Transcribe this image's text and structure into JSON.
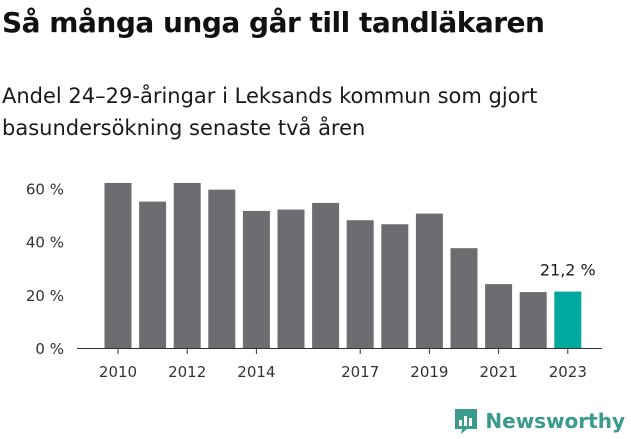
{
  "title": "Så många unga går till tandläkaren",
  "subtitle": "Andel 24–29-åringar i Leksands kommun som gjort basundersökning senaste två åren",
  "brand": "Newsworthy",
  "colors": {
    "bar": "#6d6c71",
    "highlight": "#00a99d",
    "axis": "#333333",
    "gridline": "#cccccc",
    "brand": "#3a9a8c"
  },
  "chart_data": {
    "type": "bar",
    "title": "Så många unga går till tandläkaren",
    "subtitle": "Andel 24–29-åringar i Leksands kommun som gjort basundersökning senaste två åren",
    "categories": [
      "2010",
      "2011",
      "2012",
      "2013",
      "2014",
      "2015",
      "2016",
      "2017",
      "2018",
      "2019",
      "2020",
      "2021",
      "2022",
      "2023"
    ],
    "values": [
      62,
      55,
      62,
      59.5,
      51.5,
      52,
      54.5,
      48,
      46.5,
      50.5,
      37.5,
      24,
      21,
      21.2
    ],
    "x_tick_labels": [
      "2010",
      "2012",
      "2014",
      "2017",
      "2019",
      "2021",
      "2023"
    ],
    "y_ticks": [
      0,
      20,
      40,
      60
    ],
    "y_tick_labels": [
      "0 %",
      "20 %",
      "40 %",
      "60 %"
    ],
    "ylim": [
      0,
      65
    ],
    "highlight_index": 13,
    "annotation": "21,2 %",
    "grid": false
  }
}
